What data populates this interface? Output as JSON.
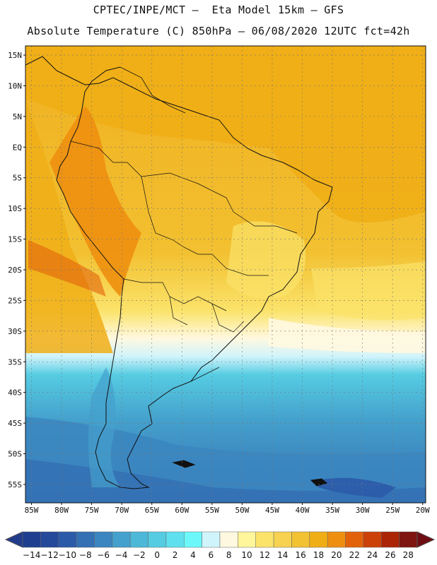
{
  "header": {
    "line1": "CPTEC/INPE/MCT –  Eta Model 15km – GFS",
    "line2": "Absolute Temperature (C) 850hPa – 06/08/2020 12UTC fct=42h"
  },
  "map": {
    "lat_labels": [
      "15N",
      "10N",
      "5N",
      "EQ",
      "5S",
      "10S",
      "15S",
      "20S",
      "25S",
      "30S",
      "35S",
      "40S",
      "45S",
      "50S",
      "55S"
    ],
    "lon_labels": [
      "85W",
      "80W",
      "75W",
      "70W",
      "65W",
      "60W",
      "55W",
      "50W",
      "45W",
      "40W",
      "35W",
      "30W",
      "25W",
      "20W"
    ],
    "lat_range": [
      -58,
      16.5
    ],
    "lon_range": [
      -86,
      -19.5
    ]
  },
  "colorbar": {
    "labels": [
      "-14",
      "-12",
      "-10",
      "-8",
      "-6",
      "-4",
      "-2",
      "0",
      "2",
      "4",
      "6",
      "8",
      "10",
      "12",
      "14",
      "16",
      "18",
      "20",
      "22",
      "24",
      "26",
      "28"
    ],
    "colors": [
      "#1e3d8f",
      "#24489a",
      "#2b5aa8",
      "#3470b4",
      "#3b86c0",
      "#44a0cc",
      "#4db8d8",
      "#56cce2",
      "#5fe0ee",
      "#6cf8fa",
      "#d0f4fc",
      "#fff8e0",
      "#fff59a",
      "#fbe36a",
      "#f7d250",
      "#f2c233",
      "#f0ae16",
      "#ee8f10",
      "#e2620b",
      "#cc4108",
      "#aa2405",
      "#7e1510"
    ],
    "under_color": "#223b8a",
    "over_color": "#6e0d12"
  }
}
